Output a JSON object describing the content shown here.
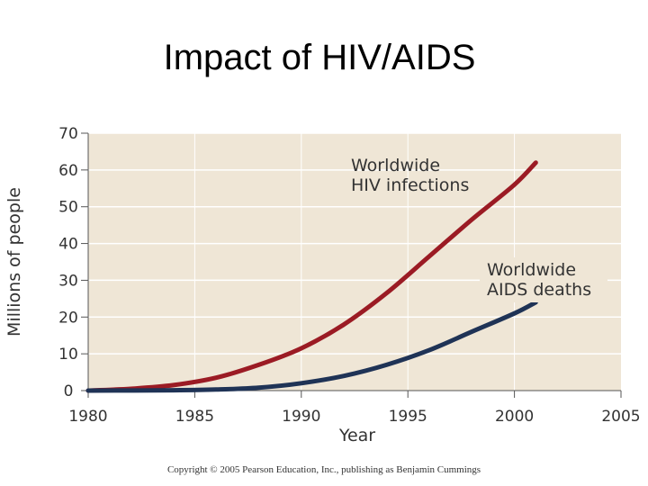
{
  "slide": {
    "title": "Impact of HIV/AIDS",
    "copyright": "Copyright © 2005 Pearson Education, Inc., publishing as Benjamin Cummings"
  },
  "colors": {
    "plot_background": "#efe6d6",
    "gridline": "#ffffff",
    "hiv_line": "#9b1b24",
    "aids_line": "#1f3356",
    "axis": "#555555"
  },
  "chart_data": {
    "type": "line",
    "title": "",
    "xlabel": "Year",
    "ylabel": "Millions of people",
    "xlim": [
      1980,
      2005
    ],
    "ylim": [
      0,
      70
    ],
    "xticks": [
      "1980",
      "1985",
      "1990",
      "1995",
      "2000",
      "2005"
    ],
    "yticks": [
      "0",
      "10",
      "20",
      "30",
      "40",
      "50",
      "60",
      "70"
    ],
    "grid": true,
    "series": [
      {
        "name": "Worldwide HIV infections",
        "label_lines": [
          "Worldwide",
          "HIV infections"
        ],
        "x": [
          1980,
          1982,
          1984,
          1986,
          1988,
          1990,
          1992,
          1994,
          1996,
          1998,
          2000,
          2001
        ],
        "values": [
          0,
          0.5,
          1.5,
          3.5,
          7,
          11.5,
          18,
          26.5,
          36.5,
          46.5,
          56,
          62
        ]
      },
      {
        "name": "Worldwide AIDS deaths",
        "label_lines": [
          "Worldwide",
          "AIDS deaths"
        ],
        "x": [
          1980,
          1984,
          1986,
          1988,
          1990,
          1992,
          1994,
          1996,
          1998,
          2000,
          2001
        ],
        "values": [
          0,
          0.1,
          0.3,
          0.8,
          2,
          4,
          7,
          11,
          16,
          21,
          24
        ]
      }
    ]
  }
}
